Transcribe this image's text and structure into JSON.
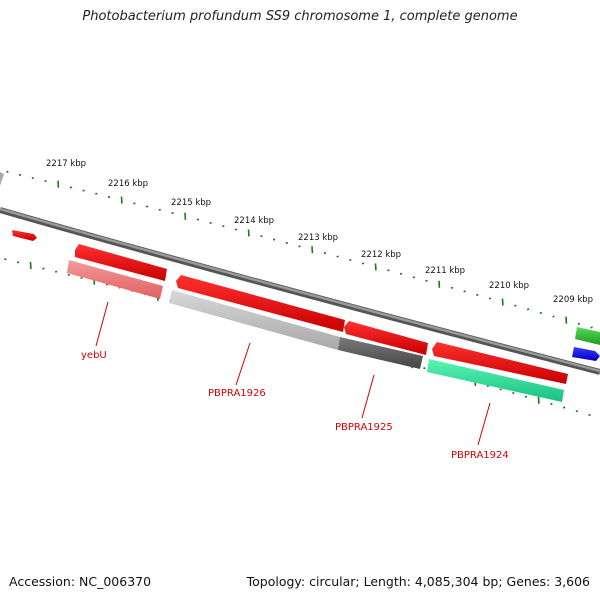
{
  "title": "Photobacterium profundum SS9 chromosome 1, complete genome",
  "footer": {
    "accession": "Accession: NC_006370",
    "summary": "Topology: circular; Length: 4,085,304 bp; Genes: 3,606"
  },
  "ruler_labels": [
    "2217 kbp",
    "2216 kbp",
    "2215 kbp",
    "2214 kbp",
    "2213 kbp",
    "2212 kbp",
    "2211 kbp",
    "2210 kbp",
    "2209 kbp"
  ],
  "gene_labels": [
    "yebU",
    "PBPRA1926",
    "PBPRA1925",
    "PBPRA1924"
  ],
  "colors": {
    "backbone": "#7a7a7a",
    "ticks": "#1a7a1a",
    "forward_gene": "#ee0000",
    "reverse_pink": "#f08080",
    "reverse_lightgray": "#c4c4c4",
    "reverse_darkgray": "#666666",
    "reverse_teal": "#22ee99",
    "green_gene": "#33bb33",
    "blue_gene": "#1a1ae6",
    "label_red": "#d40000"
  }
}
